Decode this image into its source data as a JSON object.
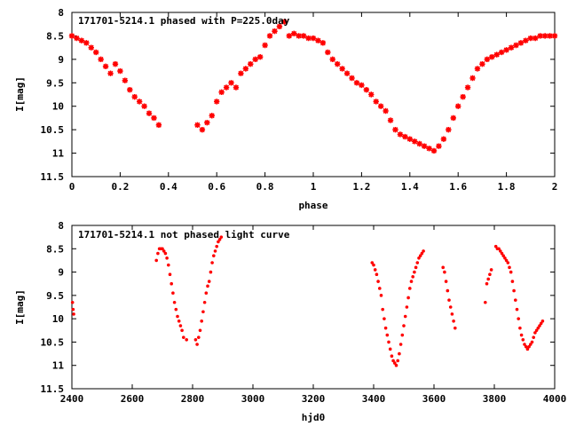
{
  "chart_data": [
    {
      "type": "scatter",
      "title": "171701-5214.1 phased with P=225.0day",
      "xlabel": "phase",
      "ylabel": "I[mag]",
      "xlim": [
        0,
        2
      ],
      "ylim": [
        11.5,
        8
      ],
      "y_inverted": true,
      "xticks": [
        "0",
        "0.2",
        "0.4",
        "0.6",
        "0.8",
        "1",
        "1.2",
        "1.4",
        "1.6",
        "1.8",
        "2"
      ],
      "yticks": [
        "8",
        "8.5",
        "9",
        "9.5",
        "10",
        "10.5",
        "11",
        "11.5"
      ],
      "marker": "star",
      "color": "#ff0000",
      "grid": false,
      "series": [
        {
          "x": [
            0.0,
            0.02,
            0.04,
            0.06,
            0.08,
            0.1,
            0.12,
            0.14,
            0.16,
            0.18,
            0.2,
            0.22,
            0.24,
            0.26,
            0.28,
            0.3,
            0.32,
            0.34,
            0.36,
            0.52,
            0.54,
            0.56,
            0.58,
            0.6,
            0.62,
            0.64,
            0.66,
            0.68,
            0.7,
            0.72,
            0.74,
            0.76,
            0.78,
            0.8,
            0.82,
            0.84,
            0.86,
            0.88,
            0.9,
            0.92,
            0.94,
            0.96,
            0.98,
            1.0,
            1.02,
            1.04,
            1.06,
            1.08,
            1.1,
            1.12,
            1.14,
            1.16,
            1.18,
            1.2,
            1.22,
            1.24,
            1.26,
            1.28,
            1.3,
            1.32,
            1.34,
            1.36,
            1.38,
            1.4,
            1.42,
            1.44,
            1.46,
            1.48,
            1.5,
            1.52,
            1.54,
            1.56,
            1.58,
            1.6,
            1.62,
            1.64,
            1.66,
            1.68,
            1.7,
            1.72,
            1.74,
            1.76,
            1.78,
            1.8,
            1.82,
            1.84,
            1.86,
            1.88,
            1.9,
            1.92,
            1.94,
            1.96,
            1.98,
            2.0
          ],
          "y": [
            8.5,
            8.55,
            8.6,
            8.65,
            8.75,
            8.85,
            9.0,
            9.15,
            9.3,
            9.1,
            9.25,
            9.45,
            9.65,
            9.8,
            9.9,
            10.0,
            10.15,
            10.25,
            10.4,
            10.4,
            10.5,
            10.35,
            10.2,
            9.9,
            9.7,
            9.6,
            9.5,
            9.6,
            9.3,
            9.2,
            9.1,
            9.0,
            8.95,
            8.7,
            8.5,
            8.4,
            8.3,
            8.2,
            8.5,
            8.45,
            8.5,
            8.5,
            8.55,
            8.55,
            8.6,
            8.65,
            8.85,
            9.0,
            9.1,
            9.2,
            9.3,
            9.4,
            9.5,
            9.55,
            9.65,
            9.75,
            9.9,
            10.0,
            10.1,
            10.3,
            10.5,
            10.6,
            10.65,
            10.7,
            10.75,
            10.8,
            10.85,
            10.9,
            10.95,
            10.85,
            10.7,
            10.5,
            10.25,
            10.0,
            9.8,
            9.6,
            9.4,
            9.2,
            9.1,
            9.0,
            8.95,
            8.9,
            8.85,
            8.8,
            8.75,
            8.7,
            8.65,
            8.6,
            8.55,
            8.55,
            8.5,
            8.5,
            8.5,
            8.5
          ]
        }
      ]
    },
    {
      "type": "scatter",
      "title": "171701-5214.1 not phased light curve",
      "xlabel": "hjd0",
      "ylabel": "I[mag]",
      "xlim": [
        2400,
        4000
      ],
      "ylim": [
        11.5,
        8
      ],
      "y_inverted": true,
      "xticks": [
        "2400",
        "2600",
        "2800",
        "3000",
        "3200",
        "3400",
        "3600",
        "3800",
        "4000"
      ],
      "yticks": [
        "8",
        "8.5",
        "9",
        "9.5",
        "10",
        "10.5",
        "11",
        "11.5"
      ],
      "marker": "dot",
      "color": "#ff0000",
      "grid": false,
      "series": [
        {
          "x": [
            2402,
            2404,
            2406,
            2680,
            2685,
            2690,
            2695,
            2700,
            2705,
            2710,
            2715,
            2720,
            2725,
            2730,
            2735,
            2740,
            2745,
            2750,
            2755,
            2760,
            2765,
            2770,
            2780,
            2810,
            2815,
            2820,
            2825,
            2830,
            2835,
            2840,
            2845,
            2850,
            2855,
            2860,
            2865,
            2870,
            2875,
            2880,
            2885,
            2890,
            2895,
            3395,
            3400,
            3405,
            3410,
            3415,
            3420,
            3425,
            3430,
            3435,
            3440,
            3445,
            3450,
            3455,
            3460,
            3465,
            3470,
            3475,
            3480,
            3485,
            3490,
            3495,
            3500,
            3505,
            3510,
            3515,
            3520,
            3525,
            3530,
            3535,
            3540,
            3545,
            3550,
            3555,
            3560,
            3565,
            3630,
            3635,
            3640,
            3645,
            3650,
            3655,
            3660,
            3665,
            3670,
            3770,
            3775,
            3780,
            3785,
            3790,
            3805,
            3810,
            3815,
            3820,
            3825,
            3830,
            3835,
            3840,
            3845,
            3850,
            3855,
            3860,
            3865,
            3870,
            3875,
            3880,
            3885,
            3890,
            3895,
            3900,
            3905,
            3910,
            3915,
            3920,
            3925,
            3930,
            3935,
            3940,
            3945,
            3950,
            3955,
            3960
          ],
          "y": [
            9.65,
            9.8,
            9.9,
            8.75,
            8.6,
            8.5,
            8.5,
            8.5,
            8.55,
            8.6,
            8.7,
            8.85,
            9.05,
            9.25,
            9.45,
            9.65,
            9.8,
            9.95,
            10.05,
            10.15,
            10.25,
            10.4,
            10.45,
            10.45,
            10.55,
            10.4,
            10.25,
            10.05,
            9.85,
            9.65,
            9.45,
            9.3,
            9.2,
            9.0,
            8.8,
            8.65,
            8.55,
            8.45,
            8.35,
            8.3,
            8.25,
            8.8,
            8.85,
            8.95,
            9.05,
            9.2,
            9.35,
            9.5,
            9.8,
            10.0,
            10.2,
            10.35,
            10.5,
            10.65,
            10.8,
            10.9,
            10.95,
            11.0,
            10.9,
            10.75,
            10.55,
            10.35,
            10.15,
            9.95,
            9.75,
            9.55,
            9.35,
            9.2,
            9.1,
            9.0,
            8.9,
            8.8,
            8.7,
            8.65,
            8.6,
            8.55,
            8.9,
            9.0,
            9.2,
            9.4,
            9.6,
            9.75,
            9.9,
            10.05,
            10.2,
            9.65,
            9.25,
            9.15,
            9.05,
            8.95,
            8.45,
            8.5,
            8.5,
            8.55,
            8.6,
            8.65,
            8.7,
            8.75,
            8.8,
            8.9,
            9.0,
            9.2,
            9.4,
            9.6,
            9.8,
            10.0,
            10.2,
            10.35,
            10.45,
            10.55,
            10.6,
            10.65,
            10.6,
            10.55,
            10.5,
            10.4,
            10.3,
            10.25,
            10.2,
            10.15,
            10.1,
            10.05
          ]
        }
      ]
    }
  ]
}
